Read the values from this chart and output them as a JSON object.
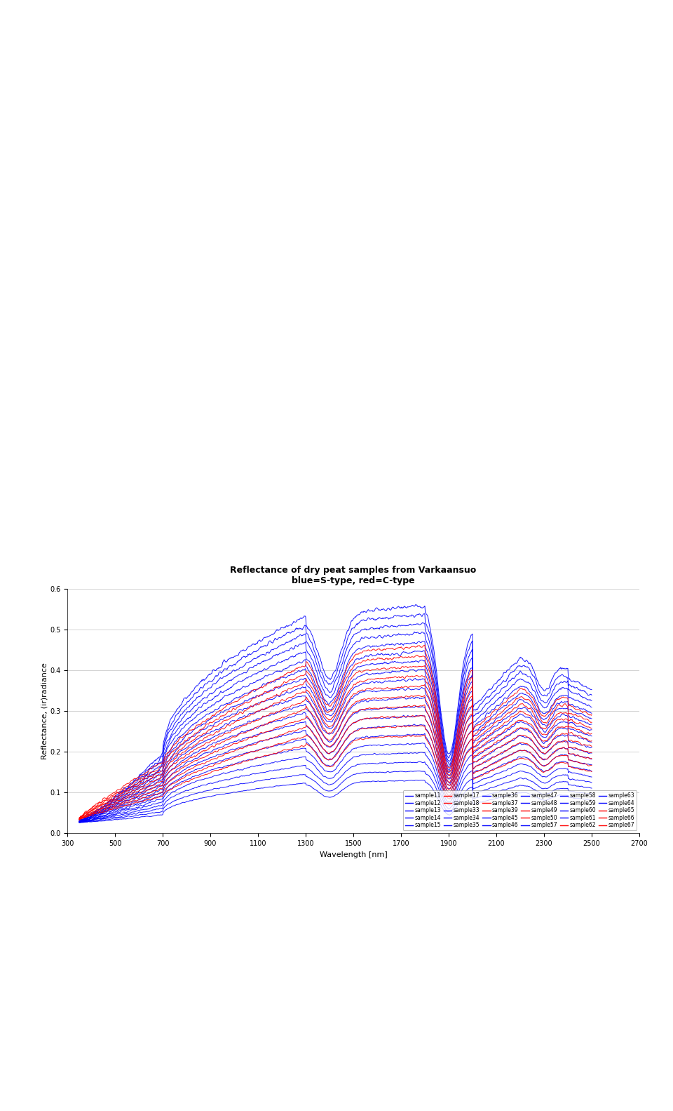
{
  "title": "Reflectance of dry peat samples from Varkaansuo",
  "subtitle": "blue=S-type, red=C-type",
  "xlabel": "Wavelength [nm]",
  "ylabel": "Reflectance, (ir)radiance",
  "xlim": [
    300,
    2700
  ],
  "ylim": [
    0,
    0.6
  ],
  "xticks": [
    300,
    500,
    700,
    900,
    1100,
    1300,
    1500,
    1700,
    1900,
    2100,
    2300,
    2500,
    2700
  ],
  "yticks": [
    0,
    0.1,
    0.2,
    0.3,
    0.4,
    0.5,
    0.6
  ],
  "legend_entries": [
    [
      "sample11",
      "sample12",
      "sample13",
      "sample14",
      "sample15",
      "sample17"
    ],
    [
      "sample18",
      "sample33",
      "sample34",
      "sample35",
      "sample36",
      "sample37"
    ],
    [
      "sample39",
      "sample45",
      "sample46",
      "sample47",
      "sample48",
      "sample49"
    ],
    [
      "sample50",
      "sample57",
      "sample58",
      "sample59",
      "sample60",
      "sample61"
    ],
    [
      "sample62",
      "sample63",
      "sample64",
      "sample65",
      "sample66",
      "sample67"
    ]
  ],
  "legend_colors": [
    [
      "blue",
      "blue",
      "blue",
      "blue",
      "blue",
      "red"
    ],
    [
      "red",
      "blue",
      "blue",
      "blue",
      "blue",
      "red"
    ],
    [
      "red",
      "blue",
      "blue",
      "blue",
      "blue",
      "red"
    ],
    [
      "red",
      "blue",
      "blue",
      "blue",
      "blue",
      "blue"
    ],
    [
      "red",
      "blue",
      "blue",
      "red",
      "red",
      "red"
    ]
  ],
  "background_color": "#ffffff",
  "fig_width": 9.6,
  "fig_height": 15.83
}
